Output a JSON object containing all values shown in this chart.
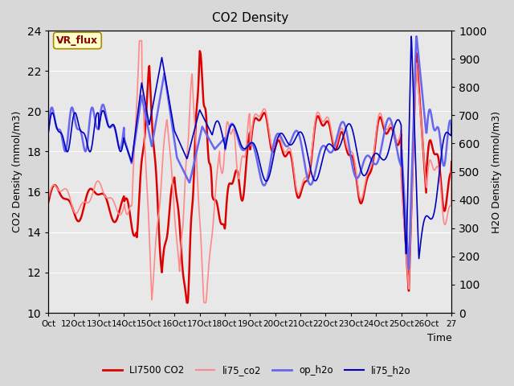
{
  "title": "CO2 Density",
  "xlabel": "Time",
  "ylabel_left": "CO2 Density (mmol/m3)",
  "ylabel_right": "H2O Density (mmol/m3)",
  "ylim_left": [
    10,
    24
  ],
  "ylim_right": [
    0,
    1000
  ],
  "yticks_left": [
    10,
    12,
    14,
    16,
    18,
    20,
    22,
    24
  ],
  "yticks_right": [
    0,
    100,
    200,
    300,
    400,
    500,
    600,
    700,
    800,
    900,
    1000
  ],
  "xtick_labels": [
    "Oct",
    "12Oct",
    "13Oct",
    "14Oct",
    "15Oct",
    "16Oct",
    "17Oct",
    "18Oct",
    "19Oct",
    "20Oct",
    "21Oct",
    "22Oct",
    "23Oct",
    "24Oct",
    "25Oct",
    "26Oct",
    "27"
  ],
  "legend_labels": [
    "LI7500 CO2",
    "li75_co2",
    "op_h2o",
    "li75_h2o"
  ],
  "annotation_text": "VR_flux",
  "annotation_color": "#8B0000",
  "annotation_bg": "#ffffcc",
  "plot_bg_color": "#e8e8e8",
  "grid_color": "#ffffff"
}
